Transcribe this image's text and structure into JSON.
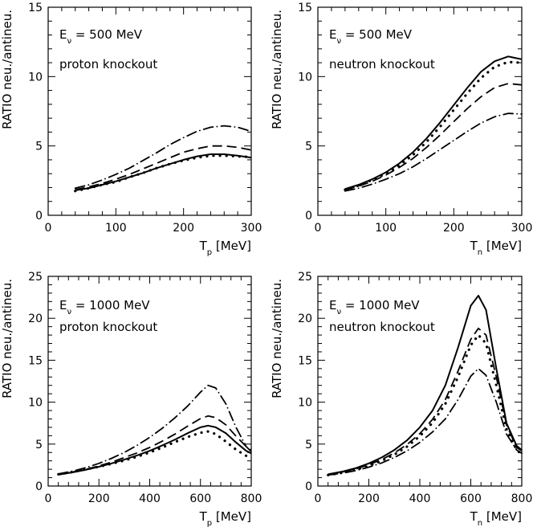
{
  "chart_data": [
    {
      "type": "line",
      "xlabel": "T_p [MeV]",
      "ylabel": "RATIO neu./antineu.",
      "xlim": [
        0,
        300
      ],
      "ylim": [
        0,
        15
      ],
      "xticks": [
        0,
        100,
        200,
        300
      ],
      "yticks": [
        0,
        5,
        10,
        15
      ],
      "annotations": [
        "E_ν = 500 MeV",
        "proton knockout"
      ],
      "series": [
        {
          "style": "solid",
          "x": [
            40,
            60,
            80,
            100,
            120,
            140,
            160,
            180,
            200,
            220,
            240,
            260,
            280,
            300
          ],
          "y": [
            1.8,
            1.95,
            2.2,
            2.45,
            2.75,
            3.05,
            3.4,
            3.7,
            4.0,
            4.25,
            4.4,
            4.4,
            4.3,
            4.15
          ]
        },
        {
          "style": "dashed",
          "x": [
            40,
            60,
            80,
            100,
            120,
            140,
            160,
            180,
            200,
            220,
            240,
            260,
            280,
            300
          ],
          "y": [
            1.85,
            2.05,
            2.3,
            2.6,
            2.95,
            3.35,
            3.75,
            4.15,
            4.55,
            4.8,
            5.0,
            5.0,
            4.9,
            4.7
          ]
        },
        {
          "style": "dotted",
          "x": [
            40,
            60,
            80,
            100,
            120,
            140,
            160,
            180,
            200,
            220,
            240,
            260,
            280,
            300
          ],
          "y": [
            1.75,
            1.95,
            2.2,
            2.4,
            2.75,
            3.05,
            3.4,
            3.7,
            3.95,
            4.15,
            4.3,
            4.3,
            4.25,
            4.2
          ]
        },
        {
          "style": "dashdot",
          "x": [
            40,
            60,
            80,
            100,
            120,
            140,
            160,
            180,
            200,
            220,
            240,
            260,
            280,
            300
          ],
          "y": [
            1.95,
            2.2,
            2.55,
            2.95,
            3.4,
            3.95,
            4.5,
            5.1,
            5.6,
            6.05,
            6.35,
            6.45,
            6.35,
            6.05
          ]
        }
      ]
    },
    {
      "type": "line",
      "xlabel": "T_n [MeV]",
      "ylabel": "RATIO neu./antineu.",
      "xlim": [
        0,
        300
      ],
      "ylim": [
        0,
        15
      ],
      "xticks": [
        0,
        100,
        200,
        300
      ],
      "yticks": [
        0,
        5,
        10,
        15
      ],
      "annotations": [
        "E_ν = 500 MeV",
        "neutron knockout"
      ],
      "series": [
        {
          "style": "solid",
          "x": [
            40,
            60,
            80,
            100,
            120,
            140,
            160,
            180,
            200,
            220,
            240,
            260,
            280,
            300
          ],
          "y": [
            1.9,
            2.2,
            2.6,
            3.1,
            3.75,
            4.55,
            5.55,
            6.7,
            7.95,
            9.2,
            10.35,
            11.1,
            11.45,
            11.25
          ]
        },
        {
          "style": "dashed",
          "x": [
            40,
            60,
            80,
            100,
            120,
            140,
            160,
            180,
            200,
            220,
            240,
            260,
            280,
            300
          ],
          "y": [
            1.85,
            2.1,
            2.45,
            2.9,
            3.45,
            4.1,
            4.9,
            5.8,
            6.75,
            7.7,
            8.55,
            9.2,
            9.5,
            9.4
          ]
        },
        {
          "style": "dotted",
          "x": [
            40,
            60,
            80,
            100,
            120,
            140,
            160,
            180,
            200,
            220,
            240,
            260,
            280,
            300
          ],
          "y": [
            1.85,
            2.15,
            2.55,
            3.0,
            3.6,
            4.35,
            5.3,
            6.4,
            7.6,
            8.8,
            9.9,
            10.7,
            11.05,
            11.0
          ]
        },
        {
          "style": "dashdot",
          "x": [
            40,
            60,
            80,
            100,
            120,
            140,
            160,
            180,
            200,
            220,
            240,
            260,
            280,
            300
          ],
          "y": [
            1.75,
            1.95,
            2.25,
            2.6,
            3.0,
            3.5,
            4.1,
            4.75,
            5.4,
            6.05,
            6.65,
            7.1,
            7.35,
            7.3
          ]
        }
      ]
    },
    {
      "type": "line",
      "xlabel": "T_p [MeV]",
      "ylabel": "RATIO neu./antineu.",
      "xlim": [
        0,
        800
      ],
      "ylim": [
        0,
        25
      ],
      "xticks": [
        0,
        200,
        400,
        600,
        800
      ],
      "yticks": [
        0,
        5,
        10,
        15,
        20,
        25
      ],
      "annotations": [
        "E_ν = 1000 MeV",
        "proton knockout"
      ],
      "series": [
        {
          "style": "solid",
          "x": [
            40,
            100,
            150,
            200,
            250,
            300,
            350,
            400,
            450,
            500,
            550,
            600,
            630,
            660,
            700,
            740,
            780,
            800
          ],
          "y": [
            1.35,
            1.65,
            1.95,
            2.3,
            2.7,
            3.15,
            3.65,
            4.2,
            4.85,
            5.55,
            6.3,
            7.0,
            7.2,
            7.0,
            6.3,
            5.2,
            4.2,
            3.9
          ]
        },
        {
          "style": "dashed",
          "x": [
            40,
            100,
            150,
            200,
            250,
            300,
            350,
            400,
            450,
            500,
            550,
            600,
            630,
            660,
            700,
            740,
            780,
            800
          ],
          "y": [
            1.35,
            1.7,
            2.0,
            2.4,
            2.85,
            3.4,
            3.95,
            4.6,
            5.35,
            6.2,
            7.15,
            8.05,
            8.35,
            8.15,
            7.3,
            5.95,
            4.7,
            4.3
          ]
        },
        {
          "style": "dotted",
          "x": [
            40,
            100,
            150,
            200,
            250,
            300,
            350,
            400,
            450,
            500,
            550,
            600,
            630,
            660,
            700,
            740,
            780,
            800
          ],
          "y": [
            1.4,
            1.7,
            2.0,
            2.3,
            2.65,
            3.05,
            3.5,
            4.0,
            4.6,
            5.25,
            5.85,
            6.35,
            6.5,
            6.2,
            5.3,
            4.35,
            3.6,
            3.4
          ]
        },
        {
          "style": "dashdot",
          "x": [
            40,
            100,
            150,
            200,
            250,
            300,
            350,
            400,
            450,
            500,
            550,
            600,
            630,
            660,
            700,
            740,
            780,
            800
          ],
          "y": [
            1.45,
            1.8,
            2.2,
            2.7,
            3.3,
            4.0,
            4.85,
            5.8,
            6.9,
            8.15,
            9.55,
            11.2,
            12.0,
            11.7,
            9.8,
            7.0,
            4.7,
            4.1
          ]
        }
      ]
    },
    {
      "type": "line",
      "xlabel": "T_n [MeV]",
      "ylabel": "RATIO neu./antineu.",
      "xlim": [
        0,
        800
      ],
      "ylim": [
        0,
        25
      ],
      "xticks": [
        0,
        200,
        400,
        600,
        800
      ],
      "yticks": [
        0,
        5,
        10,
        15,
        20,
        25
      ],
      "annotations": [
        "E_ν = 1000 MeV",
        "neutron knockout"
      ],
      "series": [
        {
          "style": "solid",
          "x": [
            40,
            100,
            150,
            200,
            250,
            300,
            350,
            400,
            450,
            500,
            550,
            600,
            630,
            660,
            700,
            740,
            780,
            800
          ],
          "y": [
            1.4,
            1.75,
            2.15,
            2.7,
            3.4,
            4.3,
            5.45,
            7.0,
            9.0,
            12.0,
            16.5,
            21.5,
            22.7,
            21.0,
            14.0,
            7.5,
            4.8,
            4.3
          ]
        },
        {
          "style": "dashed",
          "x": [
            40,
            100,
            150,
            200,
            250,
            300,
            350,
            400,
            450,
            500,
            550,
            600,
            630,
            660,
            700,
            740,
            780,
            800
          ],
          "y": [
            1.35,
            1.7,
            2.05,
            2.55,
            3.15,
            3.95,
            4.95,
            6.25,
            7.95,
            10.3,
            13.7,
            17.5,
            18.8,
            18.0,
            13.0,
            7.3,
            4.6,
            4.2
          ]
        },
        {
          "style": "dotted",
          "x": [
            40,
            100,
            150,
            200,
            250,
            300,
            350,
            400,
            450,
            500,
            550,
            600,
            630,
            660,
            700,
            740,
            780,
            800
          ],
          "y": [
            1.3,
            1.6,
            1.95,
            2.4,
            3.0,
            3.75,
            4.7,
            5.95,
            7.55,
            9.8,
            13.0,
            16.8,
            18.0,
            17.0,
            12.0,
            6.8,
            4.3,
            3.8
          ]
        },
        {
          "style": "dashdot",
          "x": [
            40,
            100,
            150,
            200,
            250,
            300,
            350,
            400,
            450,
            500,
            550,
            600,
            630,
            660,
            700,
            740,
            780,
            800
          ],
          "y": [
            1.3,
            1.55,
            1.85,
            2.25,
            2.75,
            3.4,
            4.2,
            5.2,
            6.45,
            8.0,
            10.3,
            13.1,
            14.0,
            13.2,
            10.0,
            6.2,
            4.3,
            3.9
          ]
        }
      ]
    }
  ]
}
